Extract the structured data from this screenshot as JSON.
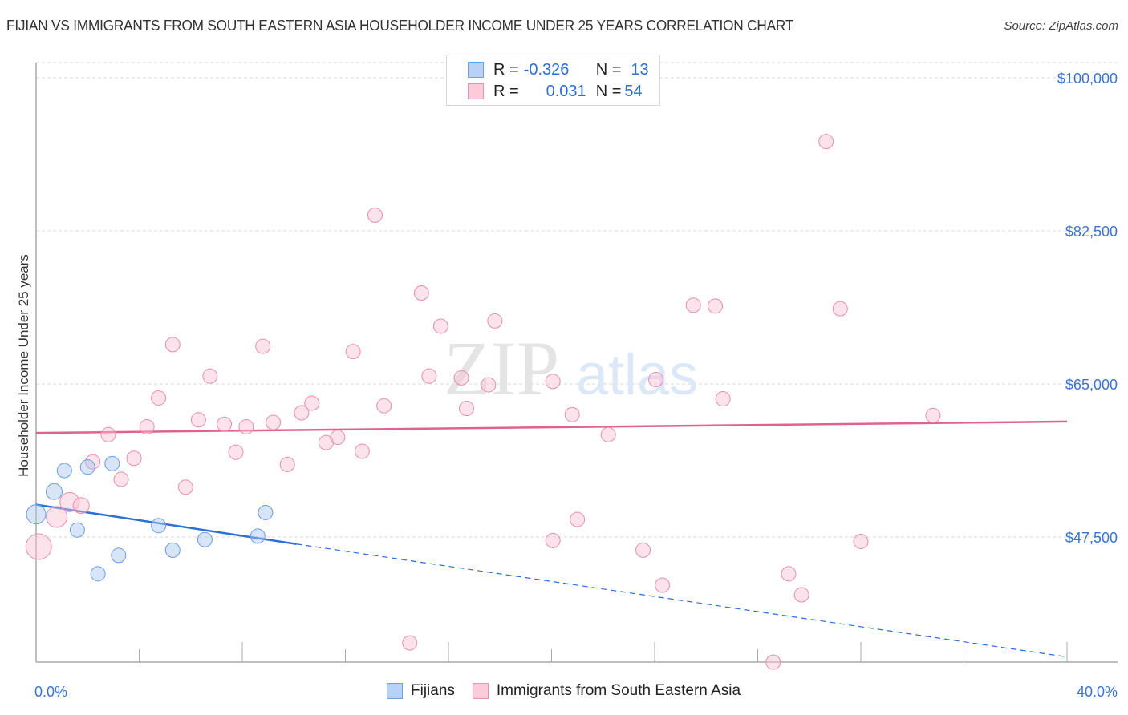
{
  "header": {
    "title": "FIJIAN VS IMMIGRANTS FROM SOUTH EASTERN ASIA HOUSEHOLDER INCOME UNDER 25 YEARS CORRELATION CHART",
    "source": "Source: ZipAtlas.com"
  },
  "legend_stats": {
    "rows": [
      {
        "series": "Fijians",
        "r_label": "R =",
        "r_value": "-0.326",
        "n_label": "N =",
        "n_value": "13",
        "color": "#a9c8f2",
        "border": "#6f9fe0"
      },
      {
        "series": "Immigrants from South Eastern Asia",
        "r_label": "R =",
        "r_value": "0.031",
        "n_label": "N =",
        "n_value": "54",
        "color": "#f9c4d4",
        "border": "#e892ad"
      }
    ]
  },
  "bottom_legend": {
    "items": [
      {
        "label": "Fijians",
        "color": "#b8d2f5",
        "border": "#6f9fe0"
      },
      {
        "label": "Immigrants from South Eastern Asia",
        "color": "#fbcbd9",
        "border": "#e892ad"
      }
    ]
  },
  "watermark": {
    "zip": "ZIP",
    "atlas": "atlas"
  },
  "colors": {
    "fijians_fill": "rgba(168,198,240,0.45)",
    "fijians_stroke": "#6b9de0",
    "fijians_trend": "#2c6fd6",
    "immigrants_fill": "rgba(248,190,208,0.45)",
    "immigrants_stroke": "#e58fab",
    "immigrants_trend": "#e0638d",
    "axis_label": "#3a74d0",
    "grid": "#d9d9d9"
  },
  "chart_data": {
    "type": "scatter",
    "title": "FIJIAN VS IMMIGRANTS FROM SOUTH EASTERN ASIA HOUSEHOLDER INCOME UNDER 25 YEARS CORRELATION CHART",
    "xlabel": "",
    "ylabel": "Householder Income Under 25 years",
    "xlim": [
      0,
      40
    ],
    "ylim": [
      33500,
      101800
    ],
    "x_tick_labels": [
      "0.0%",
      "40.0%"
    ],
    "y_ticks": [
      100000,
      82500,
      65000,
      47500
    ],
    "y_tick_labels": [
      "$100,000",
      "$82,500",
      "$65,000",
      "$47,500"
    ],
    "grid": true,
    "legend_position": "top-center",
    "series": [
      {
        "name": "Fijians",
        "r": -0.326,
        "n": 13,
        "points": [
          {
            "x": 0.0,
            "y": 50100,
            "size": 12
          },
          {
            "x": 0.7,
            "y": 52700,
            "size": 10
          },
          {
            "x": 1.1,
            "y": 55100,
            "size": 9
          },
          {
            "x": 1.6,
            "y": 48300,
            "size": 9
          },
          {
            "x": 2.0,
            "y": 55500,
            "size": 9
          },
          {
            "x": 2.4,
            "y": 43300,
            "size": 9
          },
          {
            "x": 2.95,
            "y": 55900,
            "size": 9
          },
          {
            "x": 3.2,
            "y": 45400,
            "size": 9
          },
          {
            "x": 4.75,
            "y": 48800,
            "size": 9
          },
          {
            "x": 5.3,
            "y": 46000,
            "size": 9
          },
          {
            "x": 6.55,
            "y": 47200,
            "size": 9
          },
          {
            "x": 8.6,
            "y": 47600,
            "size": 9
          },
          {
            "x": 8.9,
            "y": 50300,
            "size": 9
          }
        ],
        "trend": {
          "x0": 0,
          "y0": 51200,
          "x1": 10.1,
          "y1": 46700,
          "dashed_to": {
            "x": 40,
            "y": 33800
          }
        }
      },
      {
        "name": "Immigrants from South Eastern Asia",
        "r": 0.031,
        "n": 54,
        "points": [
          {
            "x": 0.1,
            "y": 46400,
            "size": 16
          },
          {
            "x": 0.8,
            "y": 49800,
            "size": 13
          },
          {
            "x": 1.3,
            "y": 51500,
            "size": 12
          },
          {
            "x": 1.75,
            "y": 51100,
            "size": 10
          },
          {
            "x": 2.2,
            "y": 56100,
            "size": 9
          },
          {
            "x": 2.8,
            "y": 59200,
            "size": 9
          },
          {
            "x": 3.3,
            "y": 54100,
            "size": 9
          },
          {
            "x": 3.8,
            "y": 56500,
            "size": 9
          },
          {
            "x": 4.3,
            "y": 60100,
            "size": 9
          },
          {
            "x": 4.75,
            "y": 63400,
            "size": 9
          },
          {
            "x": 5.3,
            "y": 69500,
            "size": 9
          },
          {
            "x": 5.8,
            "y": 53200,
            "size": 9
          },
          {
            "x": 6.3,
            "y": 60900,
            "size": 9
          },
          {
            "x": 6.75,
            "y": 65900,
            "size": 9
          },
          {
            "x": 7.3,
            "y": 60400,
            "size": 9
          },
          {
            "x": 7.75,
            "y": 57200,
            "size": 9
          },
          {
            "x": 8.15,
            "y": 60100,
            "size": 9
          },
          {
            "x": 8.8,
            "y": 69300,
            "size": 9
          },
          {
            "x": 9.2,
            "y": 60600,
            "size": 9
          },
          {
            "x": 9.75,
            "y": 55800,
            "size": 9
          },
          {
            "x": 10.3,
            "y": 61700,
            "size": 9
          },
          {
            "x": 10.7,
            "y": 62800,
            "size": 9
          },
          {
            "x": 11.25,
            "y": 58300,
            "size": 9
          },
          {
            "x": 11.7,
            "y": 58900,
            "size": 9
          },
          {
            "x": 12.3,
            "y": 68700,
            "size": 9
          },
          {
            "x": 12.65,
            "y": 57300,
            "size": 9
          },
          {
            "x": 13.15,
            "y": 84300,
            "size": 9
          },
          {
            "x": 13.5,
            "y": 62500,
            "size": 9
          },
          {
            "x": 14.5,
            "y": 35400,
            "size": 9
          },
          {
            "x": 14.95,
            "y": 75400,
            "size": 9
          },
          {
            "x": 15.25,
            "y": 65900,
            "size": 9
          },
          {
            "x": 15.7,
            "y": 71600,
            "size": 9
          },
          {
            "x": 16.5,
            "y": 65700,
            "size": 9
          },
          {
            "x": 16.7,
            "y": 62200,
            "size": 9
          },
          {
            "x": 17.55,
            "y": 64900,
            "size": 9
          },
          {
            "x": 17.8,
            "y": 72200,
            "size": 9
          },
          {
            "x": 20.05,
            "y": 65300,
            "size": 9
          },
          {
            "x": 20.05,
            "y": 47100,
            "size": 9
          },
          {
            "x": 20.8,
            "y": 61500,
            "size": 9
          },
          {
            "x": 21.0,
            "y": 49500,
            "size": 9
          },
          {
            "x": 22.2,
            "y": 59200,
            "size": 9
          },
          {
            "x": 23.55,
            "y": 46000,
            "size": 9
          },
          {
            "x": 24.05,
            "y": 65500,
            "size": 9
          },
          {
            "x": 24.3,
            "y": 42000,
            "size": 9
          },
          {
            "x": 25.5,
            "y": 74000,
            "size": 9
          },
          {
            "x": 26.35,
            "y": 73900,
            "size": 9
          },
          {
            "x": 26.65,
            "y": 63300,
            "size": 9
          },
          {
            "x": 28.6,
            "y": 33200,
            "size": 9
          },
          {
            "x": 29.2,
            "y": 43300,
            "size": 9
          },
          {
            "x": 29.7,
            "y": 40900,
            "size": 9
          },
          {
            "x": 30.65,
            "y": 92700,
            "size": 9
          },
          {
            "x": 31.2,
            "y": 73600,
            "size": 9
          },
          {
            "x": 32.0,
            "y": 47000,
            "size": 9
          },
          {
            "x": 34.8,
            "y": 61400,
            "size": 9
          }
        ],
        "trend": {
          "x0": 0,
          "y0": 59400,
          "x1": 40,
          "y1": 60700
        }
      }
    ]
  }
}
